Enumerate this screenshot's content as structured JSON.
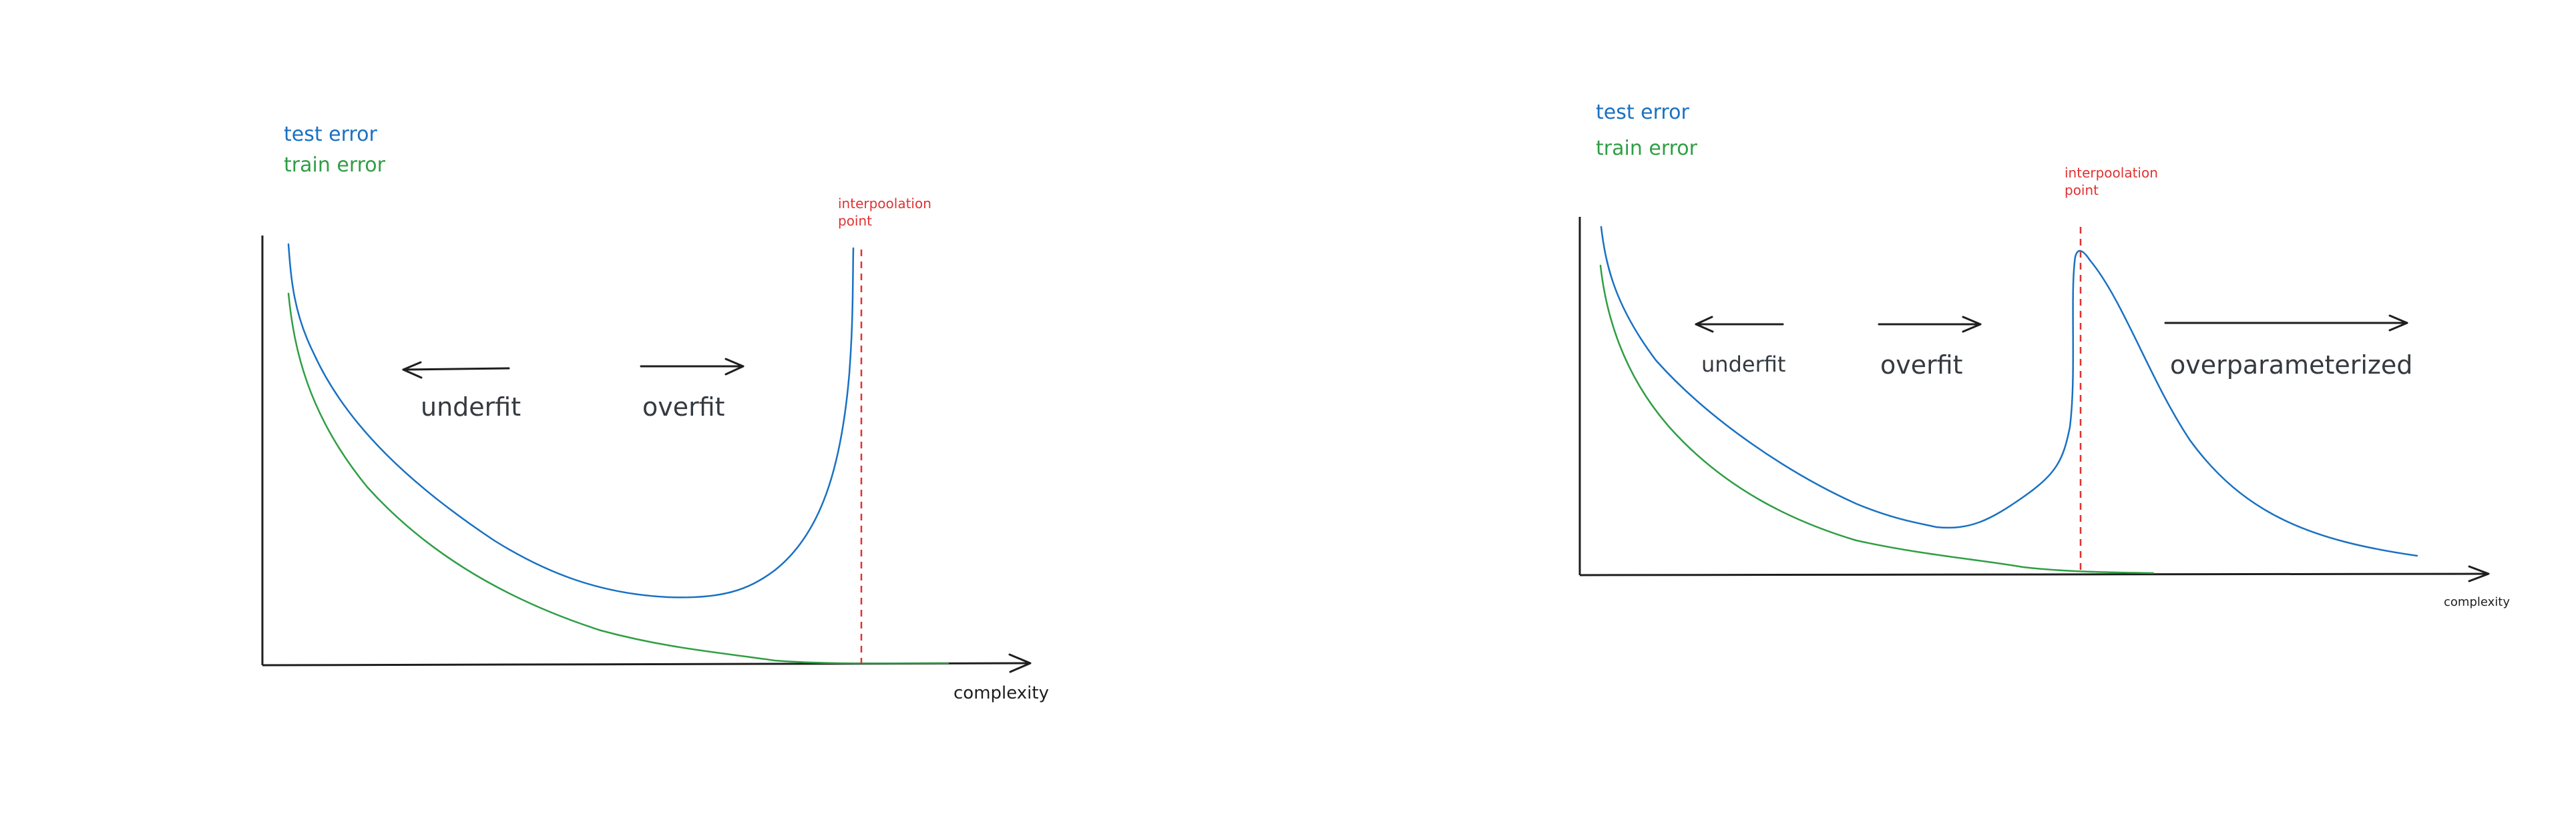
{
  "colors": {
    "test": "#1971c2",
    "train": "#2f9e44",
    "interpolation": "#e03131",
    "ink": "#1e1e1e"
  },
  "left": {
    "legend": {
      "test": "test error",
      "train": "train error"
    },
    "interpolation": {
      "line1": "interpoolation",
      "line2": "point"
    },
    "labels": {
      "underfit": "underfit",
      "overfit": "overfit"
    },
    "xlabel": "complexity"
  },
  "right": {
    "legend": {
      "test": "test error",
      "train": "train error"
    },
    "interpolation": {
      "line1": "interpoolation",
      "line2": "point"
    },
    "labels": {
      "underfit": "underfit",
      "overfit": "overfit",
      "overparam": "overparameterized"
    },
    "xlabel": "complexity"
  }
}
